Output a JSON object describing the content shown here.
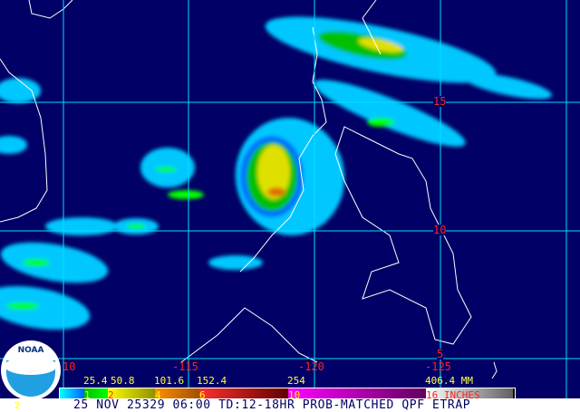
{
  "map": {
    "lat_labels": [
      "15",
      "10",
      "5"
    ],
    "lon_labels": [
      "10",
      "-115",
      "-120",
      "-125"
    ],
    "colors": {
      "background": "#000066",
      "grid": "#00e0ff",
      "coast": "#ffffff",
      "labels": "#ff2020"
    }
  },
  "logo": {
    "text": "NOAA"
  },
  "legend": {
    "mm_labels": [
      "25.4",
      "50.8",
      "101.6",
      "152.4",
      "254",
      "406.4 MM"
    ],
    "inch_labels": [
      "1",
      "2",
      "4",
      "6",
      "10",
      "16 INCHES"
    ]
  },
  "footer": {
    "caption": "25 NOV 25329 06:00 TD:12-18HR PROB-MATCHED QPF ETRAP",
    "corner": "2"
  }
}
